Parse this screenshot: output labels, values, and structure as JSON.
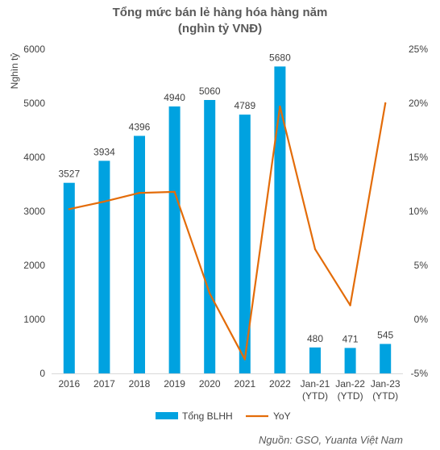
{
  "chart_data": {
    "type": "bar+line",
    "title": "Tổng mức bán lẻ hàng hóa hàng năm",
    "subtitle": "(nghìn tỷ VNĐ)",
    "ylabel": "Nghìn tỷ",
    "categories": [
      [
        "2016"
      ],
      [
        "2017"
      ],
      [
        "2018"
      ],
      [
        "2019"
      ],
      [
        "2020"
      ],
      [
        "2021"
      ],
      [
        "2022"
      ],
      [
        "Jan-21",
        "(YTD)"
      ],
      [
        "Jan-22",
        "(YTD)"
      ],
      [
        "Jan-23",
        "(YTD)"
      ]
    ],
    "ylim": [
      0,
      6000
    ],
    "yticks": [
      0,
      1000,
      2000,
      3000,
      4000,
      5000,
      6000
    ],
    "y2lim": [
      -5,
      25
    ],
    "y2ticks": [
      "-5%",
      "0%",
      "5%",
      "10%",
      "15%",
      "20%",
      "25%"
    ],
    "y2tick_values": [
      -5,
      0,
      5,
      10,
      15,
      20,
      25
    ],
    "series": [
      {
        "name": "Tổng BLHH",
        "type": "bar",
        "axis": "left",
        "color": "#00a2e0",
        "values": [
          3527,
          3934,
          4396,
          4940,
          5060,
          4789,
          5680,
          480,
          471,
          545
        ],
        "labels": [
          "3527",
          "3934",
          "4396",
          "4940",
          "5060",
          "4789",
          "5680",
          "480",
          "471",
          "545"
        ]
      },
      {
        "name": "YoY",
        "type": "line",
        "axis": "right",
        "color": "#e36c09",
        "values": [
          10.2,
          10.9,
          11.7,
          11.8,
          2.4,
          -3.7,
          19.7,
          6.5,
          1.3,
          20.0
        ]
      }
    ],
    "legend_position": "bottom",
    "grid": false
  },
  "source": "Nguồn: GSO, Yuanta Việt Nam"
}
